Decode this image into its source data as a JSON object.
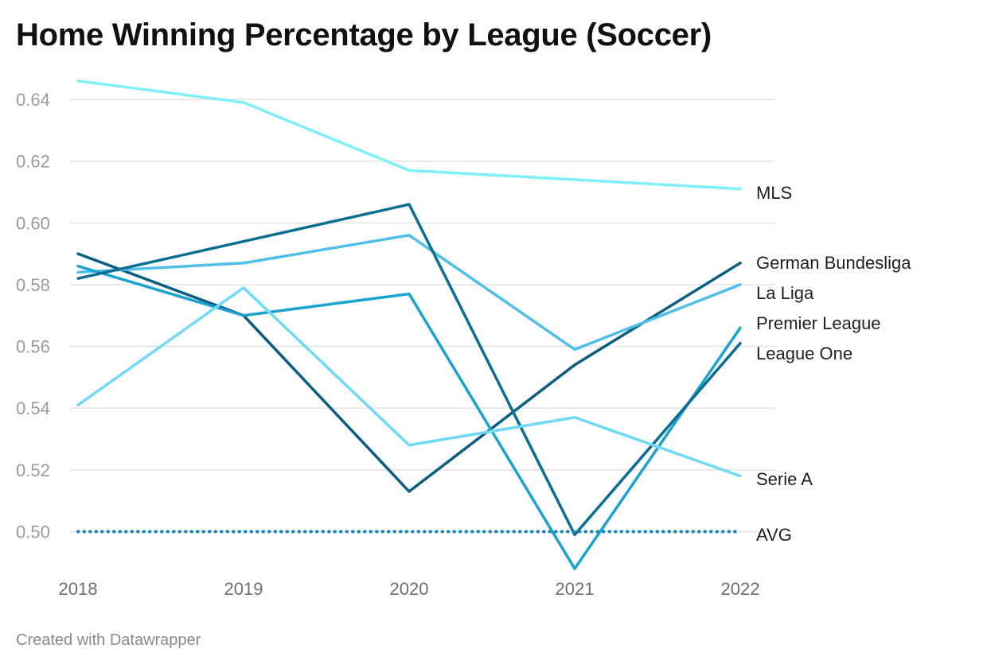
{
  "title": "Home Winning Percentage by League (Soccer)",
  "footer": "Created with Datawrapper",
  "chart_data": {
    "type": "line",
    "title": "Home Winning Percentage by League (Soccer)",
    "x": [
      "2018",
      "2019",
      "2020",
      "2021",
      "2022"
    ],
    "ylim": [
      0.49,
      0.65
    ],
    "yticks": [
      "0.50",
      "0.52",
      "0.54",
      "0.56",
      "0.58",
      "0.60",
      "0.62",
      "0.64"
    ],
    "grid": true,
    "legend": "direct labels at right end of lines",
    "series": [
      {
        "name": "MLS",
        "color": "#7ef0fb",
        "values": [
          0.646,
          0.639,
          0.617,
          0.614,
          0.611
        ]
      },
      {
        "name": "German Bundesliga",
        "color": "#0b5d82",
        "values": [
          0.59,
          0.57,
          0.513,
          0.554,
          0.587
        ]
      },
      {
        "name": "La Liga",
        "color": "#4dbfe8",
        "values": [
          0.584,
          0.587,
          0.596,
          0.559,
          0.58
        ]
      },
      {
        "name": "Premier League",
        "color": "#1aa3cf",
        "values": [
          0.586,
          0.57,
          0.577,
          0.488,
          0.566
        ]
      },
      {
        "name": "League One",
        "color": "#0a6e93",
        "values": [
          0.582,
          0.594,
          0.606,
          0.499,
          0.561
        ]
      },
      {
        "name": "Serie A",
        "color": "#6fd9f7",
        "values": [
          0.541,
          0.579,
          0.528,
          0.537,
          0.518
        ]
      },
      {
        "name": "AVG",
        "color": "#1a86b8",
        "dashed": true,
        "values": [
          0.5,
          0.5,
          0.5,
          0.5,
          0.5
        ]
      }
    ]
  }
}
